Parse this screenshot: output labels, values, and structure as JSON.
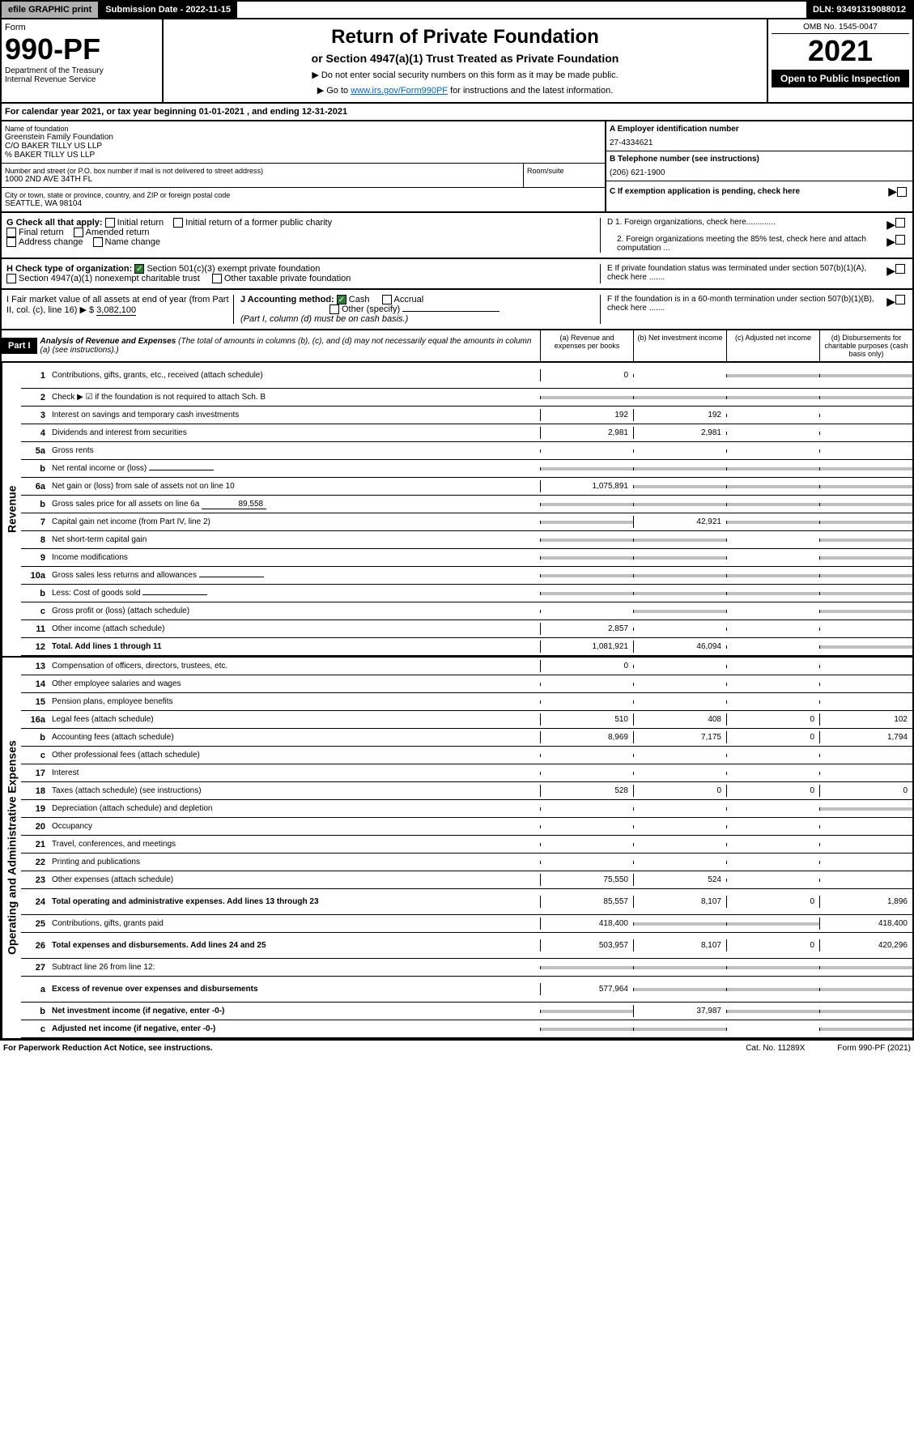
{
  "top": {
    "efile": "efile GRAPHIC print",
    "submission": "Submission Date - 2022-11-15",
    "dln": "DLN: 93491319088012"
  },
  "header": {
    "form_word": "Form",
    "form_num": "990-PF",
    "dept": "Department of the Treasury\nInternal Revenue Service",
    "title": "Return of Private Foundation",
    "subtitle": "or Section 4947(a)(1) Trust Treated as Private Foundation",
    "note1": "▶ Do not enter social security numbers on this form as it may be made public.",
    "note2_pre": "▶ Go to ",
    "note2_link": "www.irs.gov/Form990PF",
    "note2_post": " for instructions and the latest information.",
    "omb": "OMB No. 1545-0047",
    "year": "2021",
    "open": "Open to Public Inspection"
  },
  "cal_year": "For calendar year 2021, or tax year beginning 01-01-2021                                    , and ending 12-31-2021",
  "info": {
    "name_label": "Name of foundation",
    "name1": "Greenstein Family Foundation",
    "name2": "C/O BAKER TILLY US LLP",
    "name3": "% BAKER TILLY US LLP",
    "addr_label": "Number and street (or P.O. box number if mail is not delivered to street address)",
    "addr": "1000 2ND AVE 34TH FL",
    "room_label": "Room/suite",
    "city_label": "City or town, state or province, country, and ZIP or foreign postal code",
    "city": "SEATTLE, WA  98104",
    "a_label": "A Employer identification number",
    "a_val": "27-4334621",
    "b_label": "B Telephone number (see instructions)",
    "b_val": "(206) 621-1900",
    "c_label": "C If exemption application is pending, check here",
    "d1": "D 1. Foreign organizations, check here.............",
    "d2": "2. Foreign organizations meeting the 85% test, check here and attach computation ...",
    "e": "E  If private foundation status was terminated under section 507(b)(1)(A), check here .......",
    "f": "F  If the foundation is in a 60-month termination under section 507(b)(1)(B), check here .......",
    "g_label": "G Check all that apply:",
    "g_opts": [
      "Initial return",
      "Initial return of a former public charity",
      "Final return",
      "Amended return",
      "Address change",
      "Name change"
    ],
    "h_label": "H Check type of organization:",
    "h_opts": [
      "Section 501(c)(3) exempt private foundation",
      "Section 4947(a)(1) nonexempt charitable trust",
      "Other taxable private foundation"
    ],
    "i_label": "I Fair market value of all assets at end of year (from Part II, col. (c), line 16) ▶ $",
    "i_val": "3,082,100",
    "j_label": "J Accounting method:",
    "j_opts": [
      "Cash",
      "Accrual",
      "Other (specify)"
    ],
    "j_note": "(Part I, column (d) must be on cash basis.)"
  },
  "part1": {
    "label": "Part I",
    "title": "Analysis of Revenue and Expenses",
    "title_note": "(The total of amounts in columns (b), (c), and (d) may not necessarily equal the amounts in column (a) (see instructions).)",
    "cols": [
      "(a)  Revenue and expenses per books",
      "(b)  Net investment income",
      "(c)  Adjusted net income",
      "(d)  Disbursements for charitable purposes (cash basis only)"
    ]
  },
  "side_labels": {
    "revenue": "Revenue",
    "expenses": "Operating and Administrative Expenses"
  },
  "rows": [
    {
      "n": "1",
      "d": "Contributions, gifts, grants, etc., received (attach schedule)",
      "a": "0",
      "g": [
        false,
        false,
        true,
        true
      ],
      "tall": true
    },
    {
      "n": "2",
      "d": "Check ▶ ☑ if the foundation is not required to attach Sch. B",
      "g": [
        true,
        true,
        true,
        true
      ]
    },
    {
      "n": "3",
      "d": "Interest on savings and temporary cash investments",
      "a": "192",
      "b": "192"
    },
    {
      "n": "4",
      "d": "Dividends and interest from securities",
      "a": "2,981",
      "b": "2,981"
    },
    {
      "n": "5a",
      "d": "Gross rents"
    },
    {
      "n": "b",
      "d": "Net rental income or (loss)",
      "sub": "",
      "g": [
        true,
        true,
        true,
        true
      ]
    },
    {
      "n": "6a",
      "d": "Net gain or (loss) from sale of assets not on line 10",
      "a": "1,075,891",
      "g": [
        false,
        true,
        true,
        true
      ]
    },
    {
      "n": "b",
      "d": "Gross sales price for all assets on line 6a",
      "sub": "89,558",
      "g": [
        true,
        true,
        true,
        true
      ]
    },
    {
      "n": "7",
      "d": "Capital gain net income (from Part IV, line 2)",
      "b": "42,921",
      "g": [
        true,
        false,
        true,
        true
      ]
    },
    {
      "n": "8",
      "d": "Net short-term capital gain",
      "g": [
        true,
        true,
        false,
        true
      ]
    },
    {
      "n": "9",
      "d": "Income modifications",
      "g": [
        true,
        true,
        false,
        true
      ]
    },
    {
      "n": "10a",
      "d": "Gross sales less returns and allowances",
      "sub": "",
      "g": [
        true,
        true,
        true,
        true
      ]
    },
    {
      "n": "b",
      "d": "Less: Cost of goods sold",
      "sub": "",
      "g": [
        true,
        true,
        true,
        true
      ]
    },
    {
      "n": "c",
      "d": "Gross profit or (loss) (attach schedule)",
      "g": [
        false,
        true,
        false,
        true
      ]
    },
    {
      "n": "11",
      "d": "Other income (attach schedule)",
      "a": "2,857"
    },
    {
      "n": "12",
      "d": "Total. Add lines 1 through 11",
      "a": "1,081,921",
      "b": "46,094",
      "bold": true,
      "g": [
        false,
        false,
        false,
        true
      ]
    },
    {
      "n": "13",
      "d": "Compensation of officers, directors, trustees, etc.",
      "a": "0"
    },
    {
      "n": "14",
      "d": "Other employee salaries and wages"
    },
    {
      "n": "15",
      "d": "Pension plans, employee benefits"
    },
    {
      "n": "16a",
      "d": "Legal fees (attach schedule)",
      "a": "510",
      "b": "408",
      "c": "0",
      "dd": "102"
    },
    {
      "n": "b",
      "d": "Accounting fees (attach schedule)",
      "a": "8,969",
      "b": "7,175",
      "c": "0",
      "dd": "1,794"
    },
    {
      "n": "c",
      "d": "Other professional fees (attach schedule)"
    },
    {
      "n": "17",
      "d": "Interest"
    },
    {
      "n": "18",
      "d": "Taxes (attach schedule) (see instructions)",
      "a": "528",
      "b": "0",
      "c": "0",
      "dd": "0"
    },
    {
      "n": "19",
      "d": "Depreciation (attach schedule) and depletion",
      "g": [
        false,
        false,
        false,
        true
      ]
    },
    {
      "n": "20",
      "d": "Occupancy"
    },
    {
      "n": "21",
      "d": "Travel, conferences, and meetings"
    },
    {
      "n": "22",
      "d": "Printing and publications"
    },
    {
      "n": "23",
      "d": "Other expenses (attach schedule)",
      "a": "75,550",
      "b": "524"
    },
    {
      "n": "24",
      "d": "Total operating and administrative expenses. Add lines 13 through 23",
      "a": "85,557",
      "b": "8,107",
      "c": "0",
      "dd": "1,896",
      "bold": true,
      "tall": true
    },
    {
      "n": "25",
      "d": "Contributions, gifts, grants paid",
      "a": "418,400",
      "dd": "418,400",
      "g": [
        false,
        true,
        true,
        false
      ]
    },
    {
      "n": "26",
      "d": "Total expenses and disbursements. Add lines 24 and 25",
      "a": "503,957",
      "b": "8,107",
      "c": "0",
      "dd": "420,296",
      "bold": true,
      "tall": true
    },
    {
      "n": "27",
      "d": "Subtract line 26 from line 12:",
      "g": [
        true,
        true,
        true,
        true
      ]
    },
    {
      "n": "a",
      "d": "Excess of revenue over expenses and disbursements",
      "a": "577,964",
      "bold": true,
      "g": [
        false,
        true,
        true,
        true
      ],
      "tall": true
    },
    {
      "n": "b",
      "d": "Net investment income (if negative, enter -0-)",
      "b": "37,987",
      "bold": true,
      "g": [
        true,
        false,
        true,
        true
      ]
    },
    {
      "n": "c",
      "d": "Adjusted net income (if negative, enter -0-)",
      "bold": true,
      "g": [
        true,
        true,
        false,
        true
      ]
    }
  ],
  "footer": {
    "left": "For Paperwork Reduction Act Notice, see instructions.",
    "mid": "Cat. No. 11289X",
    "right": "Form 990-PF (2021)"
  }
}
